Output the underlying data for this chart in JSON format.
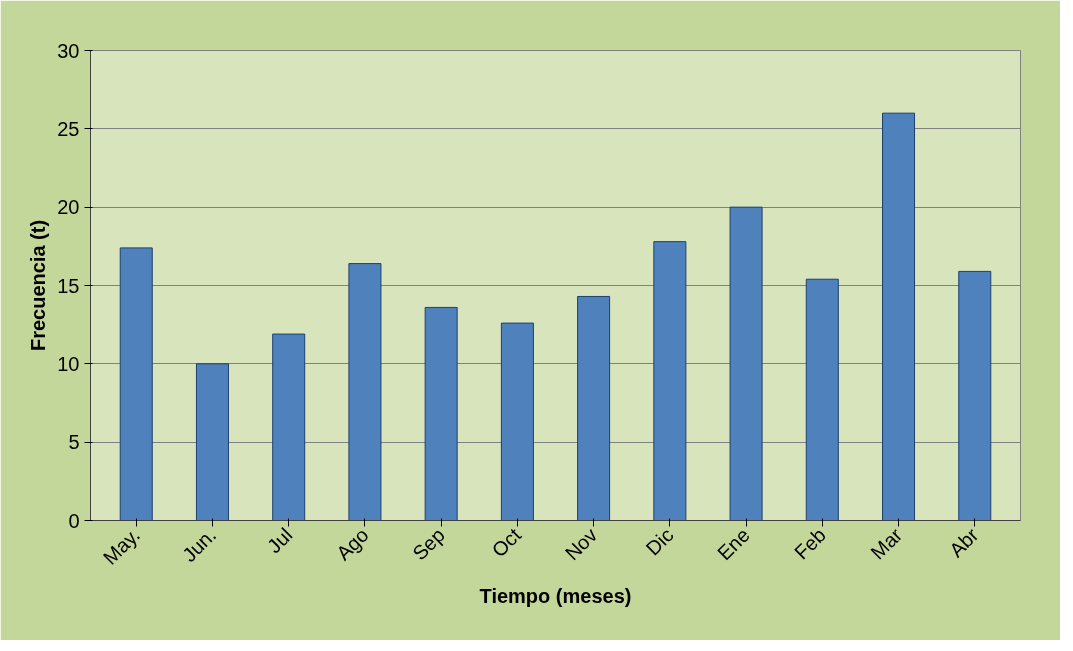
{
  "chart_data": {
    "type": "bar",
    "xlabel": "Tiempo (meses)",
    "ylabel": "Frecuencia (t)",
    "categories": [
      "May.",
      "Jun.",
      "Jul",
      "Ago",
      "Sep",
      "Oct",
      "Nov",
      "Dic",
      "Ene",
      "Feb",
      "Mar",
      "Abr"
    ],
    "series": [
      {
        "color": "#4f81bd",
        "values": [
          17.4,
          10.0,
          11.9,
          16.4,
          13.6,
          12.6,
          14.3,
          17.8,
          20.0,
          15.4,
          26.0,
          15.9
        ]
      }
    ],
    "ylim": [
      0,
      30
    ],
    "yticks": [
      0,
      5,
      10,
      15,
      20,
      25,
      30
    ],
    "grid": "y"
  }
}
